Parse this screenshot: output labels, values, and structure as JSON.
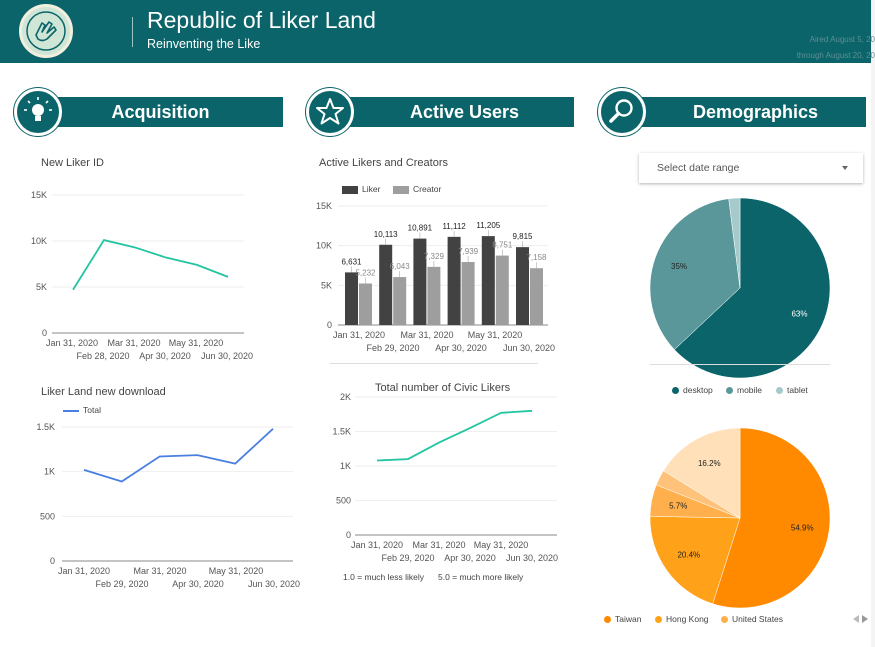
{
  "header": {
    "title": "Republic of Liker Land",
    "subtitle": "Reinventing the Like",
    "aired_line1": "Aired August 5, 20",
    "aired_line2": "through August 20, 20"
  },
  "sections": {
    "acquisition": {
      "title": "Acquisition",
      "icon": "lightbulb-icon"
    },
    "active_users": {
      "title": "Active Users",
      "icon": "star-icon"
    },
    "demographics": {
      "title": "Demographics",
      "icon": "search-icon"
    }
  },
  "date_select": {
    "placeholder": "Select date range",
    "icon": "chevron-down-icon"
  },
  "colors": {
    "header": "#0b6469",
    "teal_line": "#22c4a2",
    "blue_line": "#4a7fe0",
    "bar_dark": "#424242",
    "bar_light": "#9e9e9e",
    "pie_desktop": "#0b6469",
    "pie_mobile": "#5a979a",
    "pie_tablet": "#a6cacb",
    "pie_taiwan": "#ff8a00",
    "pie_hk": "#ffa21a",
    "pie_us": "#ffb04d",
    "pie_other": "#ffc27a",
    "pie_rest": "#ffe0b8"
  },
  "footnote": {
    "scale_low": "1.0 = much less likely",
    "scale_high": "5.0 = much more likely"
  },
  "chart_data": [
    {
      "id": "new_liker_id",
      "type": "line",
      "title": "New Liker ID",
      "x": [
        "Jan 31, 2020",
        "Feb 28, 2020",
        "Mar 31, 2020",
        "Apr 30, 2020",
        "May 31, 2020",
        "Jun 30, 2020"
      ],
      "series": [
        {
          "values": [
            4700,
            10100,
            9300,
            8200,
            7400,
            6100
          ]
        }
      ],
      "yticks": [
        "0",
        "5K",
        "10K",
        "15K"
      ],
      "ylim": [
        0,
        15000
      ],
      "xlabels_row1": [
        "Jan 31, 2020",
        "Mar 31, 2020",
        "May 31, 2020"
      ],
      "xlabels_row2": [
        "Feb 28, 2020",
        "Apr 30, 2020",
        "Jun 30, 2020"
      ]
    },
    {
      "id": "active_likers_creators",
      "type": "bar",
      "title": "Active Likers and Creators",
      "categories": [
        "Jan 31, 2020",
        "Feb 29, 2020",
        "Mar 31, 2020",
        "Apr 30, 2020",
        "May 31, 2020",
        "Jun 30, 2020"
      ],
      "series": [
        {
          "name": "Liker",
          "values": [
            6631,
            10113,
            10891,
            11112,
            11205,
            9815
          ],
          "labels": [
            "6,631",
            "10,113",
            "10,891",
            "11,112",
            "11,205",
            "9,815"
          ]
        },
        {
          "name": "Creator",
          "values": [
            5232,
            6043,
            7329,
            7939,
            8751,
            7158
          ],
          "labels": [
            "5,232",
            "6,043",
            "7,329",
            "7,939",
            "8,751",
            "7,158"
          ]
        }
      ],
      "yticks": [
        "0",
        "5K",
        "10K",
        "15K"
      ],
      "ylim": [
        0,
        15000
      ],
      "xlabels_row1": [
        "Jan 31, 2020",
        "Mar 31, 2020",
        "May 31, 2020"
      ],
      "xlabels_row2": [
        "Feb 29, 2020",
        "Apr 30, 2020",
        "Jun 30, 2020"
      ]
    },
    {
      "id": "liker_land_download",
      "type": "line",
      "title": "Liker Land new download",
      "x": [
        "Jan 31, 2020",
        "Feb 29, 2020",
        "Mar 31, 2020",
        "Apr 30, 2020",
        "May 31, 2020",
        "Jun 30, 2020"
      ],
      "series": [
        {
          "name": "Total",
          "values": [
            1020,
            890,
            1170,
            1185,
            1090,
            1480
          ]
        }
      ],
      "yticks": [
        "0",
        "500",
        "1K",
        "1.5K"
      ],
      "ylim": [
        0,
        1500
      ],
      "xlabels_row1": [
        "Jan 31, 2020",
        "Mar 31, 2020",
        "May 31, 2020"
      ],
      "xlabels_row2": [
        "Feb 29, 2020",
        "Apr 30, 2020",
        "Jun 30, 2020"
      ]
    },
    {
      "id": "civic_likers",
      "type": "line",
      "title": "Total number of Civic Likers",
      "x": [
        "Jan 31, 2020",
        "Feb 29, 2020",
        "Mar 31, 2020",
        "Apr 30, 2020",
        "May 31, 2020",
        "Jun 30, 2020"
      ],
      "series": [
        {
          "values": [
            1080,
            1100,
            1340,
            1550,
            1770,
            1800
          ]
        }
      ],
      "yticks": [
        "0",
        "500",
        "1K",
        "1.5K",
        "2K"
      ],
      "ylim": [
        0,
        2000
      ],
      "xlabels_row1": [
        "Jan 31, 2020",
        "Mar 31, 2020",
        "May 31, 2020"
      ],
      "xlabels_row2": [
        "Feb 29, 2020",
        "Apr 30, 2020",
        "Jun 30, 2020"
      ]
    },
    {
      "id": "device_pie",
      "type": "pie",
      "slices": [
        {
          "name": "desktop",
          "value": 63,
          "label": "63%"
        },
        {
          "name": "mobile",
          "value": 35,
          "label": "35%"
        },
        {
          "name": "tablet",
          "value": 2,
          "label": ""
        }
      ]
    },
    {
      "id": "country_pie",
      "type": "pie",
      "slices": [
        {
          "name": "Taiwan",
          "value": 54.9,
          "label": "54.9%"
        },
        {
          "name": "Hong Kong",
          "value": 20.4,
          "label": "20.4%"
        },
        {
          "name": "United States",
          "value": 5.7,
          "label": "5.7%"
        },
        {
          "name": "",
          "value": 2.8,
          "label": ""
        },
        {
          "name": "",
          "value": 16.2,
          "label": "16.2%"
        }
      ]
    }
  ]
}
